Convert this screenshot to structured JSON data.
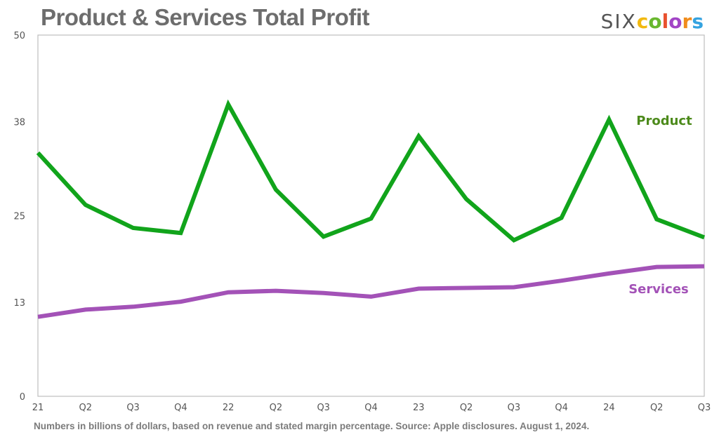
{
  "title": "Product & Services Total Profit",
  "logo": {
    "prefix": "SIX",
    "letters": [
      "c",
      "o",
      "l",
      "o",
      "r",
      "s"
    ],
    "letter_colors": [
      "#f2b90f",
      "#69b82f",
      "#e9512f",
      "#a244c6",
      "#f08c1d",
      "#35a3e0"
    ]
  },
  "footer": "Numbers in billions of dollars, based on revenue and stated margin percentage. Source: Apple disclosures. August 1, 2024.",
  "chart_data": {
    "type": "line",
    "categories": [
      "21",
      "Q2",
      "Q3",
      "Q4",
      "22",
      "Q2",
      "Q3",
      "Q4",
      "23",
      "Q2",
      "Q3",
      "Q4",
      "24",
      "Q2",
      "Q3"
    ],
    "ylim": [
      0,
      50
    ],
    "yticks": [
      0,
      13,
      25,
      38,
      50
    ],
    "grid": false,
    "series": [
      {
        "name": "Product",
        "color": "#11a41b",
        "label_color": "#4c8a1b",
        "values": [
          33.7,
          26.5,
          23.3,
          22.6,
          40.4,
          28.6,
          22.1,
          24.6,
          36.0,
          27.3,
          21.6,
          24.7,
          38.3,
          24.5,
          22.0
        ]
      },
      {
        "name": "Services",
        "color": "#a352b7",
        "label_color": "#a352b7",
        "values": [
          11.0,
          12.0,
          12.4,
          13.1,
          14.4,
          14.6,
          14.3,
          13.8,
          14.9,
          15.0,
          15.1,
          16.0,
          17.0,
          17.9,
          18.0
        ]
      }
    ]
  }
}
